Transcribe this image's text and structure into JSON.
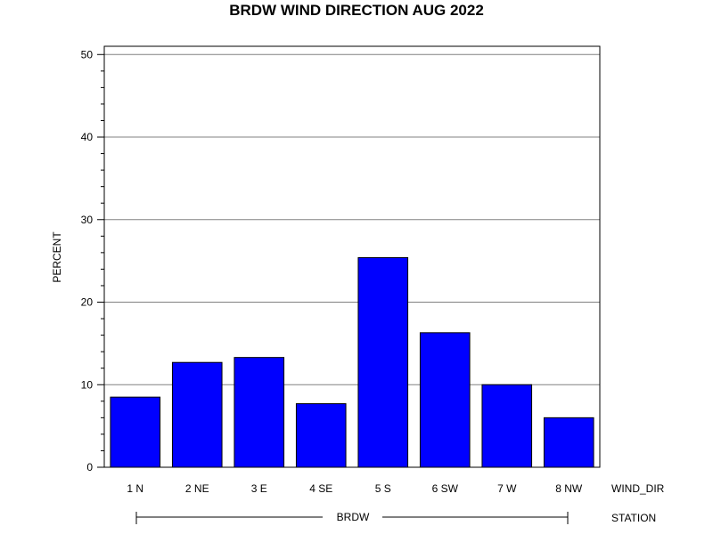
{
  "colors": {
    "bar_fill": "#0000ff",
    "bar_stroke": "#000000",
    "grid": "#808080",
    "axis": "#000000",
    "background": "#ffffff"
  },
  "chart_data": {
    "type": "bar",
    "title": "BRDW WIND DIRECTION AUG 2022",
    "ylabel": "PERCENT",
    "xlabel": "WIND_DIR",
    "group_label": "STATION",
    "group_value": "BRDW",
    "categories": [
      "1 N",
      "2 NE",
      "3 E",
      "4 SE",
      "5 S",
      "6 SW",
      "7 W",
      "8 NW"
    ],
    "values": [
      8.5,
      12.7,
      13.3,
      7.7,
      25.4,
      16.3,
      10.0,
      6.0
    ],
    "ylim": [
      0,
      51
    ],
    "yticks": [
      0,
      10,
      20,
      30,
      40,
      50
    ],
    "grid": true,
    "legend": "none"
  }
}
